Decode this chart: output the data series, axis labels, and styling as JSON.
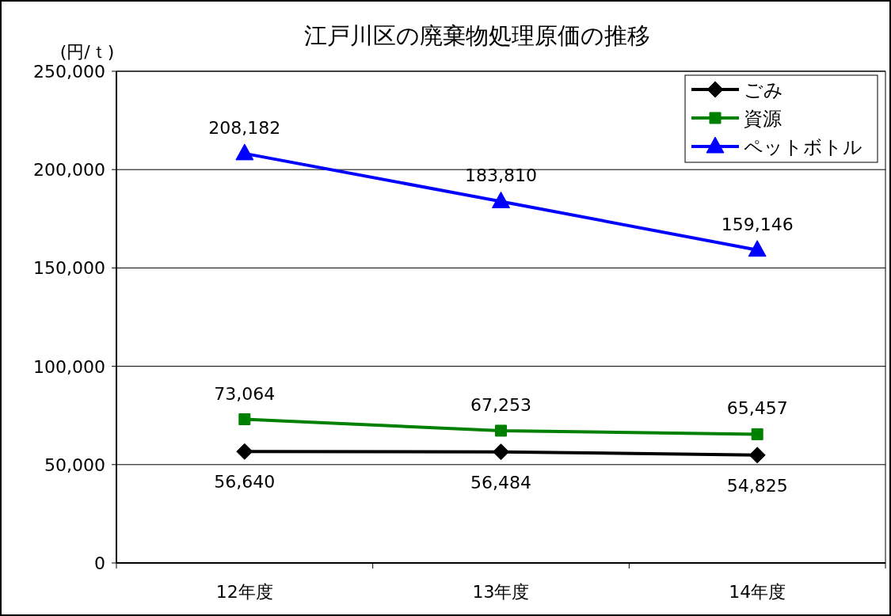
{
  "chart_data": {
    "type": "line",
    "title": "江戸川区の廃棄物処理原価の推移",
    "ylabel": "(円/ｔ)",
    "categories": [
      "12年度",
      "13年度",
      "14年度"
    ],
    "ylim": [
      0,
      250000
    ],
    "yticks": [
      {
        "value": 0,
        "label": "0"
      },
      {
        "value": 50000,
        "label": "50,000"
      },
      {
        "value": 100000,
        "label": "100,000"
      },
      {
        "value": 150000,
        "label": "150,000"
      },
      {
        "value": 200000,
        "label": "200,000"
      },
      {
        "value": 250000,
        "label": "250,000"
      }
    ],
    "grid": "y",
    "legend": "top right",
    "series": [
      {
        "name": "ごみ",
        "color": "#000000",
        "marker": "diamond",
        "values": [
          56640,
          56484,
          54825
        ],
        "value_labels": [
          "56,640",
          "56,484",
          "54,825"
        ]
      },
      {
        "name": "資源",
        "color": "#008000",
        "marker": "square",
        "values": [
          73064,
          67253,
          65457
        ],
        "value_labels": [
          "73,064",
          "67,253",
          "65,457"
        ]
      },
      {
        "name": "ペットボトル",
        "color": "#0000ff",
        "marker": "triangle",
        "values": [
          208182,
          183810,
          159146
        ],
        "value_labels": [
          "208,182",
          "183,810",
          "159,146"
        ]
      }
    ]
  }
}
